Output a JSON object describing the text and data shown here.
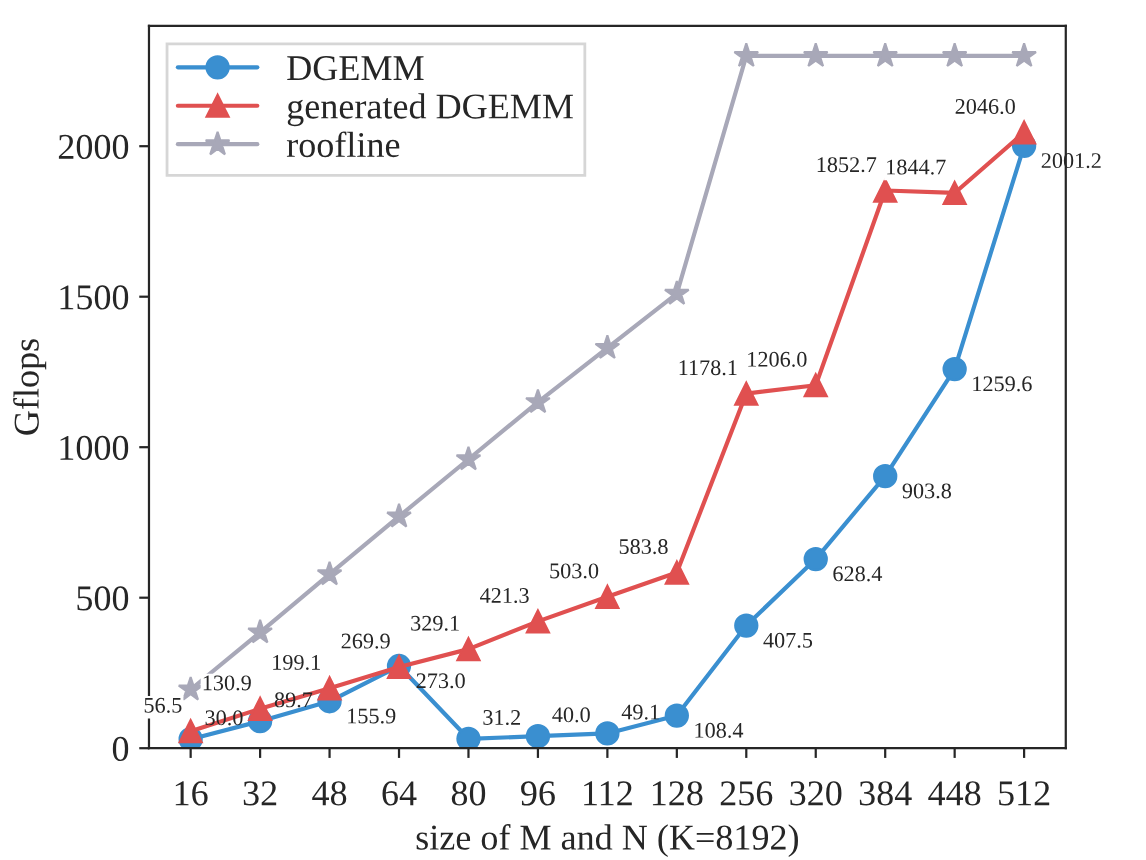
{
  "chart_data": {
    "type": "line",
    "xlabel": "size of M and N (K=8192)",
    "ylabel": "Gflops",
    "categories": [
      "16",
      "32",
      "48",
      "64",
      "80",
      "96",
      "112",
      "128",
      "256",
      "320",
      "384",
      "448",
      "512"
    ],
    "ylim": [
      0,
      2400
    ],
    "yticks": [
      0,
      500,
      1000,
      1500,
      2000
    ],
    "grid": false,
    "legend": "top left",
    "series": [
      {
        "name": "DGEMM",
        "color": "#3a8fd0",
        "marker": "circle",
        "values": [
          30.0,
          89.7,
          155.9,
          273.0,
          31.2,
          40.0,
          49.1,
          108.4,
          407.5,
          628.4,
          903.8,
          1259.6,
          2001.2
        ],
        "value_labels": [
          "30.0",
          "89.7",
          "155.9",
          "273.0",
          "31.2",
          "40.0",
          "49.1",
          "108.4",
          "407.5",
          "628.4",
          "903.8",
          "1259.6",
          "2001.2"
        ]
      },
      {
        "name": "generated DGEMM",
        "color": "#e05050",
        "marker": "triangle",
        "values": [
          56.5,
          130.9,
          199.1,
          269.9,
          329.1,
          421.3,
          503.0,
          583.8,
          1178.1,
          1206.0,
          1852.7,
          1844.7,
          2046.0
        ],
        "value_labels": [
          "56.5",
          "130.9",
          "199.1",
          "269.9",
          "329.1",
          "421.3",
          "503.0",
          "583.8",
          "1178.1",
          "1206.0",
          "1852.7",
          "1844.7",
          "2046.0"
        ]
      },
      {
        "name": "roofline",
        "color": "#a8a8b8",
        "marker": "star",
        "values": [
          195,
          385,
          578,
          770,
          960,
          1150,
          1330,
          1510,
          2300,
          2300,
          2300,
          2300,
          2300
        ]
      }
    ]
  }
}
